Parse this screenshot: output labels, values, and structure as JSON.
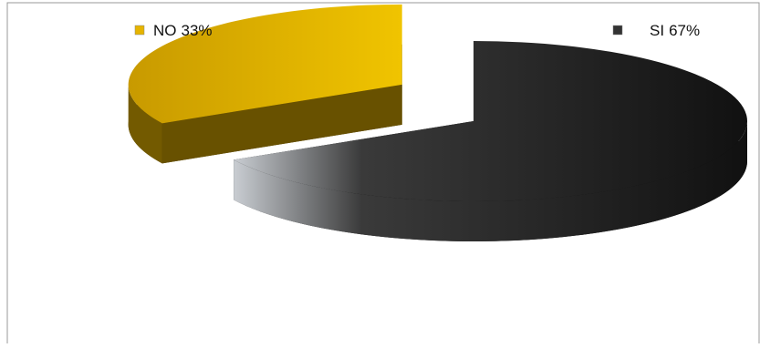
{
  "chart_data": {
    "type": "pie3d",
    "categories": [
      "NO",
      "SI"
    ],
    "values": [
      33,
      67
    ],
    "value_labels": [
      "33%",
      "67%"
    ],
    "colors": [
      "#e6b400",
      "#1a1a1a"
    ]
  }
}
